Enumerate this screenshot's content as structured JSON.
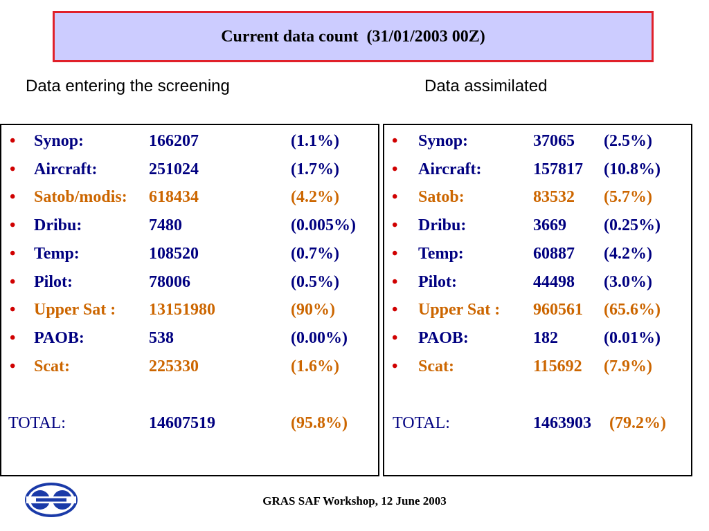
{
  "title": "Current data count  (31/01/2003 00Z)",
  "left_heading": "Data entering the screening",
  "right_heading": "Data assimilated",
  "left_rows": [
    {
      "name": "Synop:",
      "count": "166207",
      "pct": "(1.1%)",
      "highlight": false
    },
    {
      "name": "Aircraft:",
      "count": "251024",
      "pct": "(1.7%)",
      "highlight": false
    },
    {
      "name": "Satob/modis:",
      "count": "618434",
      "pct": "(4.2%)",
      "highlight": true
    },
    {
      "name": "Dribu:",
      "count": "7480",
      "pct": "(0.005%)",
      "highlight": false
    },
    {
      "name": "Temp:",
      "count": "108520",
      "pct": "(0.7%)",
      "highlight": false
    },
    {
      "name": "Pilot:",
      "count": "78006",
      "pct": "(0.5%)",
      "highlight": false
    },
    {
      "name": "Upper Sat :",
      "count": "13151980",
      "pct": "(90%)",
      "highlight": true
    },
    {
      "name": "PAOB:",
      "count": "538",
      "pct": "(0.00%)",
      "highlight": false
    },
    {
      "name": "Scat:",
      "count": "225330",
      "pct": "(1.6%)",
      "highlight": true
    }
  ],
  "left_total": {
    "label": "TOTAL:",
    "count": "14607519",
    "pct": "(95.8%)"
  },
  "right_rows": [
    {
      "name": "Synop:",
      "count": "37065",
      "pct": "(2.5%)",
      "highlight": false
    },
    {
      "name": "Aircraft:",
      "count": "157817",
      "pct": "(10.8%)",
      "highlight": false
    },
    {
      "name": "Satob:",
      "count": "83532",
      "pct": "(5.7%)",
      "highlight": true
    },
    {
      "name": "Dribu:",
      "count": "3669",
      "pct": "(0.25%)",
      "highlight": false
    },
    {
      "name": "Temp:",
      "count": "60887",
      "pct": "(4.2%)",
      "highlight": false
    },
    {
      "name": "Pilot:",
      "count": "44498",
      "pct": "(3.0%)",
      "highlight": false
    },
    {
      "name": "Upper Sat :",
      "count": "960561",
      "pct": "(65.6%)",
      "highlight": true
    },
    {
      "name": "PAOB:",
      "count": "182",
      "pct": "(0.01%)",
      "highlight": false
    },
    {
      "name": "Scat:",
      "count": "115692",
      "pct": "(7.9%)",
      "highlight": true
    }
  ],
  "right_total": {
    "label": "TOTAL:",
    "count": "1463903",
    "pct": "(79.2%)"
  },
  "footer": "GRAS SAF Workshop, 12 June 2003",
  "colors": {
    "normal": "#000080",
    "highlight": "#cc6600",
    "bullet": "#d00000",
    "title_bg": "#ccccff",
    "title_border": "#e0202a"
  }
}
